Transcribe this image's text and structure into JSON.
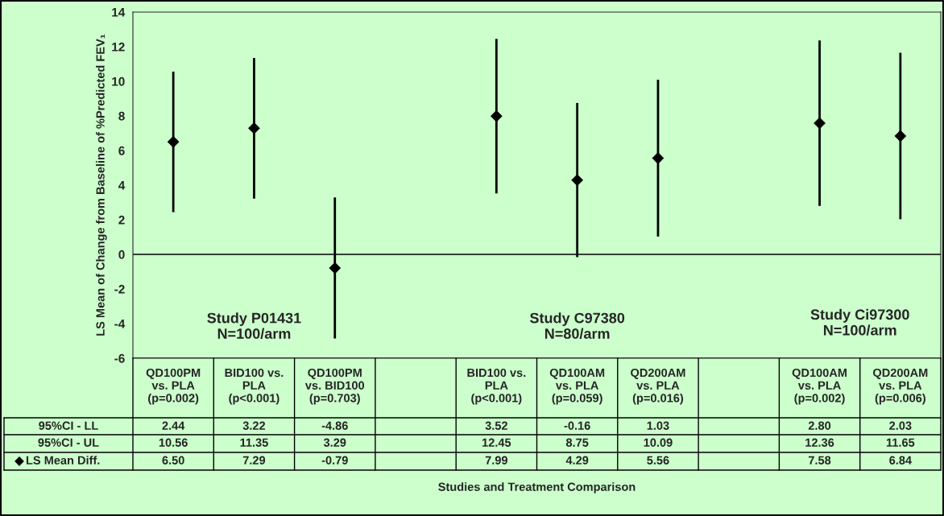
{
  "chart_data": {
    "type": "scatter",
    "ylabel": "LS Mean of Change from Baseline of %Predicted FEV₁",
    "categories": [
      "QD100PM\nvs. PLA\n(p=0.002)",
      "BID100 vs.\nPLA\n(p<0.001)",
      "QD100PM\nvs. BID100\n(p=0.703)",
      null,
      "BID100 vs.\nPLA\n(p<0.001)",
      "QD100AM\nvs. PLA\n(p=0.059)",
      "QD200AM\nvs. PLA\n(p=0.016)",
      null,
      "QD100AM\nvs. PLA\n(p=0.002)",
      "QD200AM\nvs. PLA\n(p=0.006)"
    ],
    "series": [
      {
        "name": "LS Mean Diff.",
        "color": "#000000",
        "values": [
          6.5,
          7.29,
          -0.79,
          null,
          7.99,
          4.29,
          5.56,
          null,
          7.58,
          6.84
        ],
        "errors": [
          [
            2.44,
            10.56
          ],
          [
            3.22,
            11.35
          ],
          [
            -4.86,
            3.29
          ],
          null,
          [
            3.52,
            12.45
          ],
          [
            -0.16,
            8.75
          ],
          [
            1.03,
            10.09
          ],
          null,
          [
            2.8,
            12.36
          ],
          [
            2.03,
            11.65
          ]
        ],
        "value_labels": [
          "6.50",
          "7.29",
          "-0.79",
          null,
          "7.99",
          "4.29",
          "5.56",
          null,
          "7.58",
          "6.84"
        ]
      }
    ],
    "marker": "diamond",
    "ylim": [
      -6,
      14
    ],
    "yticks": [
      -6,
      -4,
      -2,
      0,
      2,
      4,
      6,
      8,
      10,
      12,
      14
    ],
    "ref_lines": [
      {
        "axis": "y",
        "value": 0,
        "color": "#000000"
      }
    ],
    "grid": false,
    "legend": "bottom left",
    "annotations": [
      "Study P01431\nN=100/arm",
      "Study C97380\nN=80/arm",
      "Study Ci97300\nN=100/arm",
      "95%CI - LL",
      "95%CI - UL",
      "Studies and Treatment Comparison",
      "2.44",
      "3.22",
      "-4.86",
      "3.52",
      "-0.16",
      "1.03",
      "2.80",
      "2.03",
      "10.56",
      "11.35",
      "3.29",
      "12.45",
      "8.75",
      "10.09",
      "12.36",
      "11.65"
    ]
  }
}
